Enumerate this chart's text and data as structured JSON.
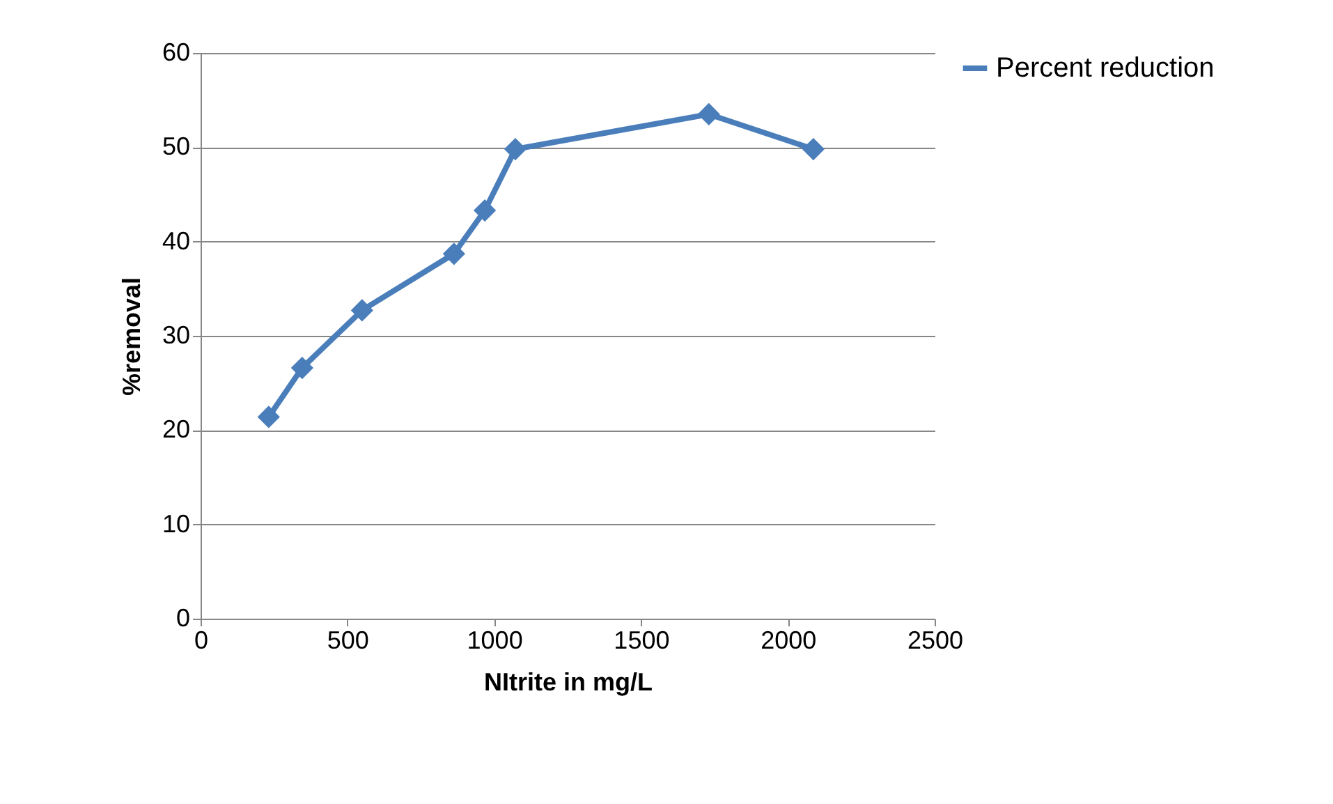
{
  "chart_data": {
    "type": "line",
    "xlabel": "NItrite in mg/L",
    "ylabel": "%removal",
    "x": [
      232,
      346,
      550,
      863,
      968,
      1072,
      1731,
      2087
    ],
    "series": [
      {
        "name": "Percent reduction",
        "color": "#4a7ebb",
        "values": [
          21.4,
          26.6,
          32.7,
          38.7,
          43.3,
          49.8,
          53.5,
          49.8
        ]
      }
    ],
    "xlim": [
      0,
      2500
    ],
    "xticks": [
      0,
      500,
      1000,
      1500,
      2000,
      2500
    ],
    "ylim": [
      0,
      60
    ],
    "yticks": [
      0,
      10,
      20,
      30,
      40,
      50,
      60
    ],
    "grid": "y",
    "legend": "right",
    "marker": "diamond",
    "line_style": "solid"
  }
}
